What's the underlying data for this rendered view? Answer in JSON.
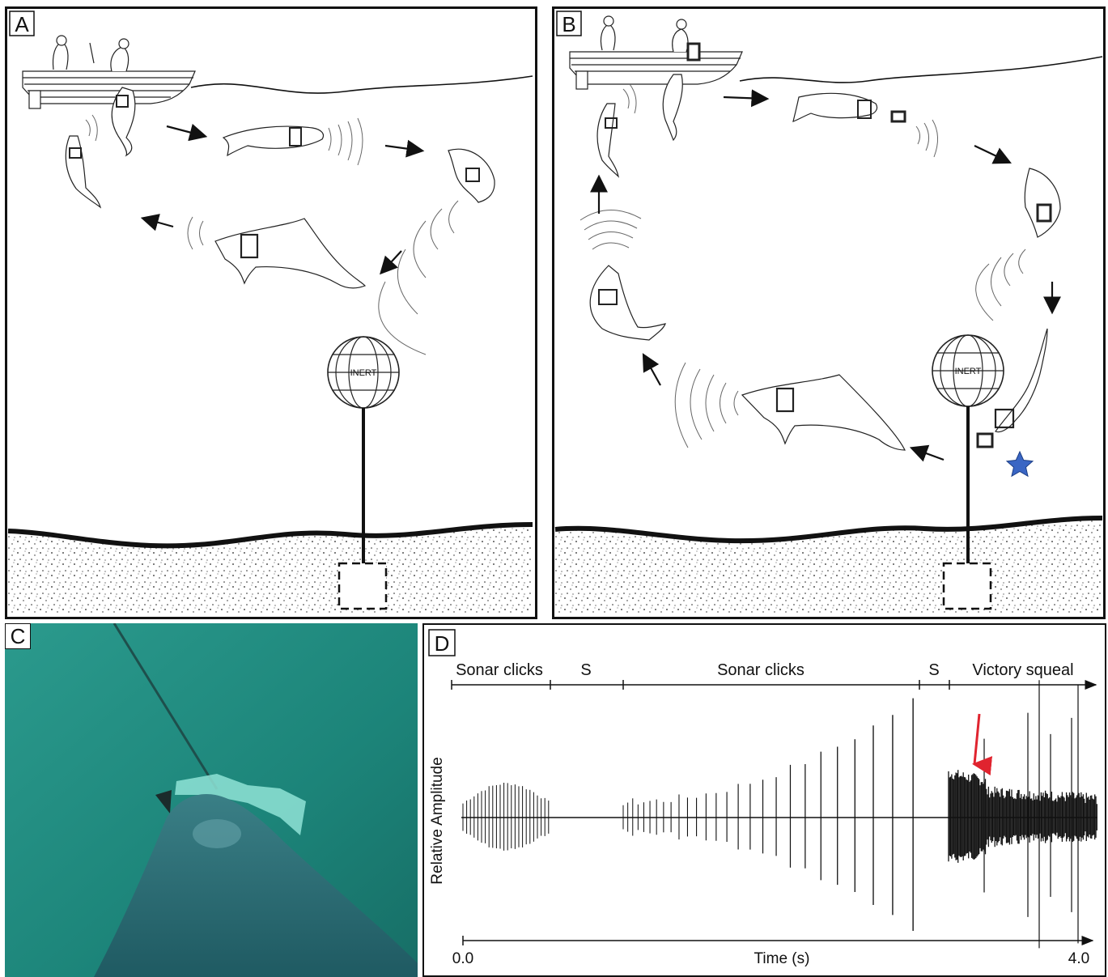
{
  "panels": {
    "a": {
      "label": "A",
      "mine_label": "INERT"
    },
    "b": {
      "label": "B",
      "mine_label": "INERT"
    },
    "c": {
      "label": "C"
    },
    "d": {
      "label": "D",
      "segments": [
        "Sonar clicks",
        "S",
        "Sonar clicks",
        "S",
        "Victory squeal"
      ],
      "ylabel": "Relative Amplitude",
      "xlabel": "Time (s)",
      "x_start": "0.0",
      "x_end": "4.0"
    }
  },
  "colors": {
    "water_photo": "#1f8a80",
    "arrow_red": "#e0242f",
    "star_blue": "#3a66c4"
  }
}
